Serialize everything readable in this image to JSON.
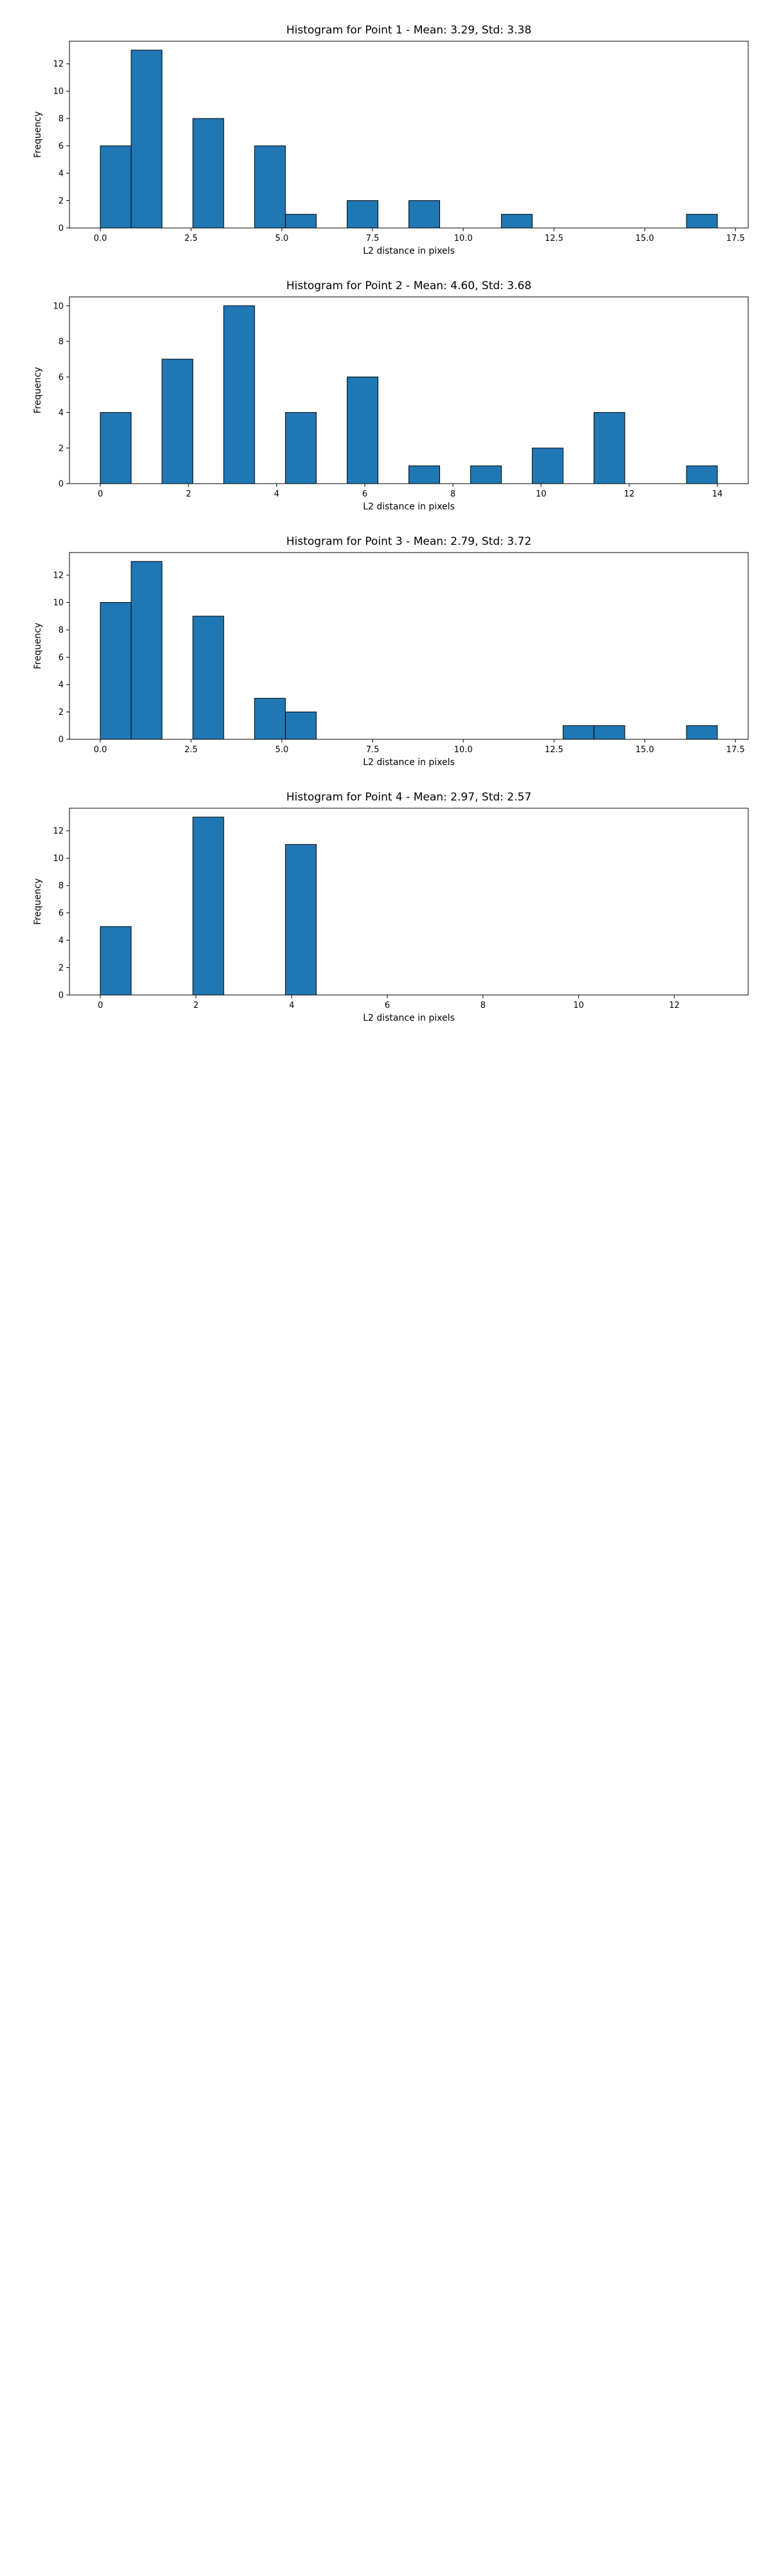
{
  "chart_data": [
    {
      "type": "bar",
      "title": "Histogram for Point 1 - Mean: 3.29, Std: 3.38",
      "xlabel": "L2 distance in pixels",
      "ylabel": "Frequency",
      "bin_width": 0.85,
      "xlim": [
        -0.85,
        17.85
      ],
      "ylim": [
        0,
        13.65
      ],
      "xticks": [
        "0.0",
        "2.5",
        "5.0",
        "7.5",
        "10.0",
        "12.5",
        "15.0",
        "17.5"
      ],
      "xtick_values": [
        0,
        2.5,
        5,
        7.5,
        10,
        12.5,
        15,
        17.5
      ],
      "yticks": [
        0,
        2,
        4,
        6,
        8,
        10,
        12
      ],
      "bins": [
        {
          "x": 0.0,
          "count": 6
        },
        {
          "x": 0.85,
          "count": 13
        },
        {
          "x": 2.55,
          "count": 8
        },
        {
          "x": 4.25,
          "count": 6
        },
        {
          "x": 5.1,
          "count": 1
        },
        {
          "x": 6.8,
          "count": 2
        },
        {
          "x": 8.5,
          "count": 2
        },
        {
          "x": 11.05,
          "count": 1
        },
        {
          "x": 16.15,
          "count": 1
        }
      ]
    },
    {
      "type": "bar",
      "title": "Histogram for Point 2 - Mean: 4.60, Std: 3.68",
      "xlabel": "L2 distance in pixels",
      "ylabel": "Frequency",
      "bin_width": 0.7,
      "xlim": [
        -0.7,
        14.7
      ],
      "ylim": [
        0,
        10.5
      ],
      "xticks": [
        "0",
        "2",
        "4",
        "6",
        "8",
        "10",
        "12",
        "14"
      ],
      "xtick_values": [
        0,
        2,
        4,
        6,
        8,
        10,
        12,
        14
      ],
      "yticks": [
        0,
        2,
        4,
        6,
        8,
        10
      ],
      "bins": [
        {
          "x": 0.0,
          "count": 4
        },
        {
          "x": 1.4,
          "count": 7
        },
        {
          "x": 2.8,
          "count": 10
        },
        {
          "x": 4.2,
          "count": 4
        },
        {
          "x": 5.6,
          "count": 6
        },
        {
          "x": 7.0,
          "count": 1
        },
        {
          "x": 8.4,
          "count": 1
        },
        {
          "x": 9.8,
          "count": 2
        },
        {
          "x": 11.2,
          "count": 4
        },
        {
          "x": 13.3,
          "count": 1
        }
      ]
    },
    {
      "type": "bar",
      "title": "Histogram for Point 3 - Mean: 2.79, Std: 3.72",
      "xlabel": "L2 distance in pixels",
      "ylabel": "Frequency",
      "bin_width": 0.85,
      "xlim": [
        -0.85,
        17.85
      ],
      "ylim": [
        0,
        13.65
      ],
      "xticks": [
        "0.0",
        "2.5",
        "5.0",
        "7.5",
        "10.0",
        "12.5",
        "15.0",
        "17.5"
      ],
      "xtick_values": [
        0,
        2.5,
        5,
        7.5,
        10,
        12.5,
        15,
        17.5
      ],
      "yticks": [
        0,
        2,
        4,
        6,
        8,
        10,
        12
      ],
      "bins": [
        {
          "x": 0.0,
          "count": 10
        },
        {
          "x": 0.85,
          "count": 13
        },
        {
          "x": 2.55,
          "count": 9
        },
        {
          "x": 4.25,
          "count": 3
        },
        {
          "x": 5.1,
          "count": 2
        },
        {
          "x": 12.75,
          "count": 1
        },
        {
          "x": 13.6,
          "count": 1
        },
        {
          "x": 16.15,
          "count": 1
        }
      ]
    },
    {
      "type": "bar",
      "title": "Histogram for Point 4 - Mean: 2.97, Std: 2.57",
      "xlabel": "L2 distance in pixels",
      "ylabel": "Frequency",
      "bin_width": 0.645,
      "xlim": [
        -0.645,
        13.545
      ],
      "ylim": [
        0,
        13.65
      ],
      "xticks": [
        "0",
        "2",
        "4",
        "6",
        "8",
        "10",
        "12"
      ],
      "xtick_values": [
        0,
        2,
        4,
        6,
        8,
        10,
        12
      ],
      "yticks": [
        0,
        2,
        4,
        6,
        8,
        10,
        12
      ],
      "bins": [
        {
          "x": 0.0,
          "count": 5
        },
        {
          "x": 1.935,
          "count": 13
        },
        {
          "x": 3.87,
          "count": 11
        }
      ]
    }
  ]
}
